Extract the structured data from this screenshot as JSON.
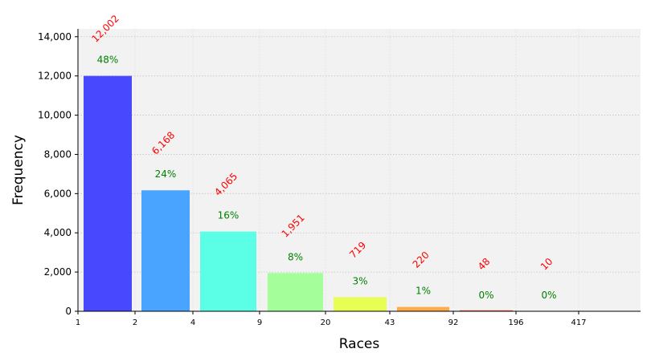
{
  "chart_data": {
    "type": "bar",
    "title": "",
    "xlabel": "Races",
    "ylabel": "Frequency",
    "ylim": [
      0,
      14400
    ],
    "yticks": [
      "0",
      "2,000",
      "4,000",
      "6,000",
      "8,000",
      "10,000",
      "12,000",
      "14,000"
    ],
    "ytick_values": [
      0,
      2000,
      4000,
      6000,
      8000,
      10000,
      12000,
      14000
    ],
    "xticks": [
      "1",
      "2",
      "4",
      "9",
      "20",
      "43",
      "92",
      "196",
      "417"
    ],
    "grid": true,
    "bins": [
      {
        "values": 12002,
        "count_label": "12,002",
        "pct_label": "48%",
        "color": "#4848ff"
      },
      {
        "values": 6168,
        "count_label": "6,168",
        "pct_label": "24%",
        "color": "#48a4ff"
      },
      {
        "values": 4065,
        "count_label": "4,065",
        "pct_label": "16%",
        "color": "#5affe6"
      },
      {
        "values": 1951,
        "count_label": "1,951",
        "pct_label": "8%",
        "color": "#a4ff9a"
      },
      {
        "values": 719,
        "count_label": "719",
        "pct_label": "3%",
        "color": "#e6ff52"
      },
      {
        "values": 220,
        "count_label": "220",
        "pct_label": "1%",
        "color": "#ffac48"
      },
      {
        "values": 48,
        "count_label": "48",
        "pct_label": "0%",
        "color": "#ff5a48"
      },
      {
        "values": 10,
        "count_label": "10",
        "pct_label": "0%",
        "color": "#a40000"
      }
    ],
    "count_label_color": "#ff0000",
    "pct_label_color": "#008000",
    "plot_background": "#f2f2f2"
  }
}
